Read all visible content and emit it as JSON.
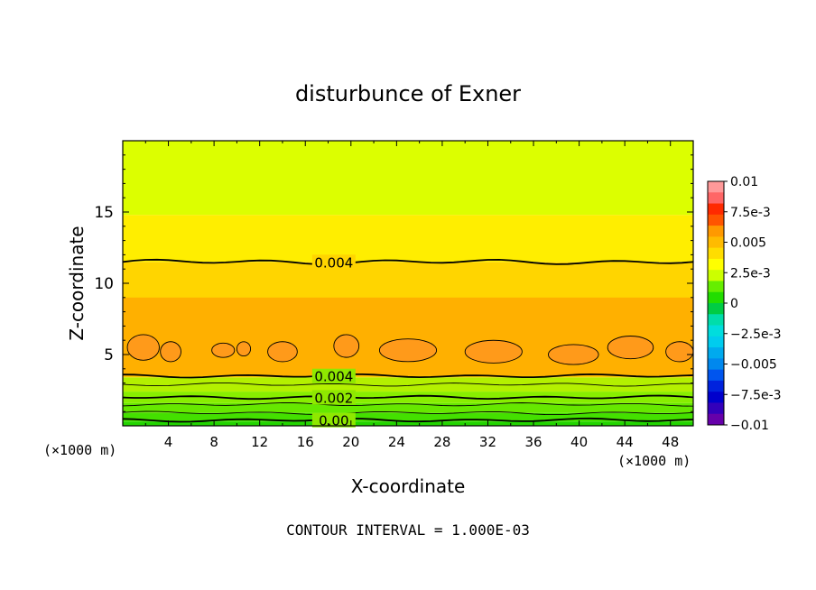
{
  "chart_data": {
    "type": "contour",
    "title": "disturbunce of Exner",
    "xlabel": "X-coordinate",
    "ylabel": "Z-coordinate",
    "x_unit": "(×1000 m)",
    "y_unit": "(×1000 m)",
    "xlim": [
      0,
      50
    ],
    "ylim": [
      0,
      20
    ],
    "x_ticks": [
      4,
      8,
      12,
      16,
      20,
      24,
      28,
      32,
      36,
      40,
      44,
      48
    ],
    "x_tick_labels": [
      "4",
      "8",
      "12",
      "16",
      "20",
      "24",
      "28",
      "32",
      "36",
      "40",
      "44",
      "48"
    ],
    "y_ticks": [
      5,
      10,
      15
    ],
    "y_tick_labels": [
      "5",
      "10",
      "15"
    ],
    "footer": "CONTOUR INTERVAL = 1.000E-03",
    "contour_interval": 0.001,
    "bands": [
      {
        "z0": 0.0,
        "z1": 0.3,
        "color": "#22d400"
      },
      {
        "z0": 0.3,
        "z1": 0.9,
        "color": "#44e000"
      },
      {
        "z0": 0.9,
        "z1": 1.6,
        "color": "#66e800"
      },
      {
        "z0": 1.6,
        "z1": 2.4,
        "color": "#88ee00"
      },
      {
        "z0": 2.4,
        "z1": 3.4,
        "color": "#b4f000"
      },
      {
        "z0": 3.4,
        "z1": 8.5,
        "color": "#ffcc00"
      },
      {
        "z0": 8.5,
        "z1": 11.5,
        "color": "#ffd500"
      },
      {
        "z0": 11.5,
        "z1": 14.8,
        "color": "#ffee00"
      },
      {
        "z0": 14.8,
        "z1": 20.0,
        "color": "#dcff00"
      }
    ],
    "orange_band": {
      "z0": 3.5,
      "z1": 9.0,
      "color": "#ffb000"
    },
    "contour_lines": [
      {
        "z": 11.5,
        "label": "0.004",
        "label_x": 18.5,
        "weight": "thick"
      },
      {
        "z": 3.5,
        "label": "0.004",
        "label_x": 18.5,
        "weight": "thick"
      },
      {
        "z": 2.9,
        "weight": "thin"
      },
      {
        "z": 2.0,
        "label": "0.002",
        "label_x": 18.5,
        "weight": "thick"
      },
      {
        "z": 1.5,
        "weight": "thin"
      },
      {
        "z": 0.9,
        "weight": "thin"
      },
      {
        "z": 0.4,
        "label": "0.00",
        "label_x": 18.5,
        "weight": "thick"
      }
    ],
    "max_cells": [
      {
        "cx": 1.8,
        "cz": 5.5,
        "rx": 1.4,
        "rz": 0.9
      },
      {
        "cx": 4.2,
        "cz": 5.2,
        "rx": 0.9,
        "rz": 0.7
      },
      {
        "cx": 8.8,
        "cz": 5.3,
        "rx": 1.0,
        "rz": 0.5
      },
      {
        "cx": 10.6,
        "cz": 5.4,
        "rx": 0.6,
        "rz": 0.5
      },
      {
        "cx": 14.0,
        "cz": 5.2,
        "rx": 1.3,
        "rz": 0.7
      },
      {
        "cx": 19.6,
        "cz": 5.6,
        "rx": 1.1,
        "rz": 0.8
      },
      {
        "cx": 25.0,
        "cz": 5.3,
        "rx": 2.5,
        "rz": 0.8
      },
      {
        "cx": 32.5,
        "cz": 5.2,
        "rx": 2.5,
        "rz": 0.8
      },
      {
        "cx": 39.5,
        "cz": 5.0,
        "rx": 2.2,
        "rz": 0.7
      },
      {
        "cx": 44.5,
        "cz": 5.5,
        "rx": 2.0,
        "rz": 0.8
      },
      {
        "cx": 48.8,
        "cz": 5.2,
        "rx": 1.2,
        "rz": 0.7
      }
    ],
    "colorbar": {
      "labels": [
        "0.01",
        "7.5e-3",
        "0.005",
        "2.5e-3",
        "0",
        "−2.5e-3",
        "−0.005",
        "−7.5e-3",
        "−0.01"
      ],
      "colors_top_to_bottom": [
        "#ff9999",
        "#ff6666",
        "#ff2a00",
        "#ff5500",
        "#ff9900",
        "#ffbb00",
        "#ffdd00",
        "#ffff00",
        "#ccff00",
        "#66ee00",
        "#22dd00",
        "#00cc44",
        "#00ddaa",
        "#00dddd",
        "#00ccee",
        "#00aaee",
        "#0088ee",
        "#0055ee",
        "#0022dd",
        "#0000cc",
        "#3300bb",
        "#6600aa"
      ]
    }
  }
}
